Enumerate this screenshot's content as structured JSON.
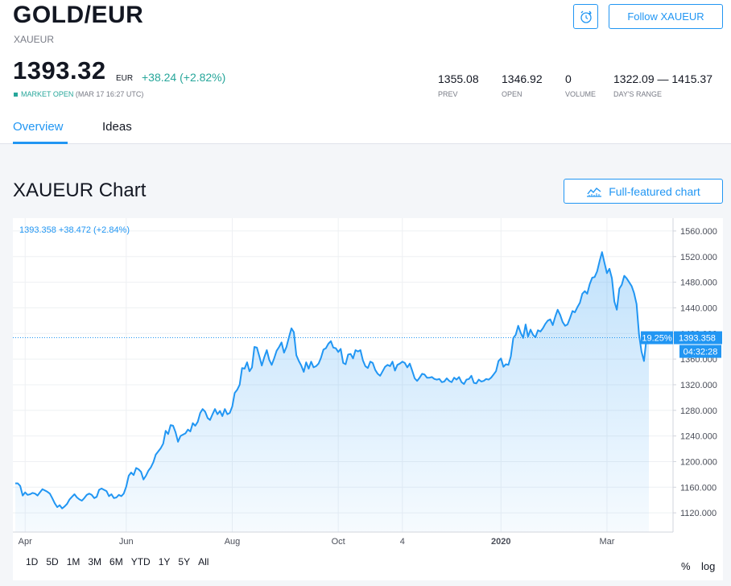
{
  "header": {
    "title": "GOLD/EUR",
    "subtitle": "XAUEUR",
    "follow_label": "Follow XAUEUR",
    "alarm_icon": "alarm-clock-icon"
  },
  "quote": {
    "price": "1393.32",
    "currency": "EUR",
    "change": "+38.24 (+2.82%)",
    "market_status": "MARKET OPEN",
    "market_time": "(MAR 17 16:27 UTC)",
    "up_color": "#26a69a"
  },
  "stats": [
    {
      "value": "1355.08",
      "label": "PREV"
    },
    {
      "value": "1346.92",
      "label": "OPEN"
    },
    {
      "value": "0",
      "label": "VOLUME"
    },
    {
      "value": "1322.09 — 1415.37",
      "label": "DAY'S RANGE"
    }
  ],
  "tabs": [
    {
      "label": "Overview",
      "active": true
    },
    {
      "label": "Ideas",
      "active": false
    }
  ],
  "section": {
    "title": "XAUEUR Chart",
    "full_chart_label": "Full-featured chart"
  },
  "chart_legend": "1393.358 +38.472 (+2.84%)",
  "ranges": [
    "1D",
    "5D",
    "1M",
    "3M",
    "6M",
    "YTD",
    "1Y",
    "5Y",
    "All"
  ],
  "scale_options": [
    "%",
    "log"
  ],
  "accent_color": "#2196f3",
  "chart_data": {
    "type": "area",
    "title": "",
    "xlabel": "",
    "ylabel": "",
    "ylim": [
      1090,
      1580
    ],
    "y_ticks": [
      "1560.000",
      "1520.000",
      "1480.000",
      "1440.000",
      "1400.000",
      "1360.000",
      "1320.000",
      "1280.000",
      "1240.000",
      "1200.000",
      "1160.000",
      "1120.000"
    ],
    "x_ticks": [
      {
        "label": "Apr",
        "idx": 4
      },
      {
        "label": "Jun",
        "idx": 45
      },
      {
        "label": "Aug",
        "idx": 88
      },
      {
        "label": "Oct",
        "idx": 131
      },
      {
        "label": "4",
        "idx": 157
      },
      {
        "label": "2020",
        "idx": 197
      },
      {
        "label": "Mar",
        "idx": 240
      }
    ],
    "last_value_label": "1393.358",
    "last_value": 1393.358,
    "percent_label": "19.25%",
    "countdown_label": "04:32:28",
    "series": [
      {
        "values": [
          1166,
          1166,
          1162,
          1147,
          1152,
          1148,
          1149,
          1151,
          1150,
          1147,
          1152,
          1157,
          1155,
          1153,
          1150,
          1143,
          1135,
          1129,
          1132,
          1127,
          1130,
          1134,
          1141,
          1145,
          1149,
          1144,
          1141,
          1139,
          1143,
          1148,
          1150,
          1148,
          1143,
          1145,
          1156,
          1158,
          1156,
          1154,
          1146,
          1149,
          1143,
          1144,
          1148,
          1146,
          1150,
          1161,
          1178,
          1183,
          1179,
          1190,
          1188,
          1184,
          1172,
          1178,
          1186,
          1191,
          1199,
          1211,
          1216,
          1221,
          1228,
          1248,
          1243,
          1257,
          1256,
          1246,
          1231,
          1240,
          1242,
          1244,
          1250,
          1247,
          1260,
          1256,
          1262,
          1276,
          1282,
          1278,
          1268,
          1265,
          1274,
          1282,
          1274,
          1279,
          1271,
          1282,
          1274,
          1276,
          1286,
          1307,
          1312,
          1320,
          1346,
          1345,
          1355,
          1341,
          1347,
          1379,
          1378,
          1364,
          1350,
          1363,
          1374,
          1359,
          1351,
          1361,
          1373,
          1379,
          1386,
          1370,
          1379,
          1394,
          1408,
          1402,
          1366,
          1357,
          1350,
          1340,
          1355,
          1345,
          1356,
          1347,
          1349,
          1353,
          1362,
          1375,
          1377,
          1384,
          1388,
          1378,
          1377,
          1371,
          1376,
          1354,
          1352,
          1367,
          1368,
          1361,
          1374,
          1372,
          1374,
          1358,
          1349,
          1346,
          1356,
          1354,
          1343,
          1337,
          1334,
          1341,
          1348,
          1351,
          1349,
          1356,
          1342,
          1351,
          1353,
          1356,
          1354,
          1347,
          1353,
          1342,
          1330,
          1326,
          1331,
          1337,
          1336,
          1331,
          1331,
          1332,
          1329,
          1328,
          1329,
          1324,
          1325,
          1330,
          1326,
          1324,
          1331,
          1328,
          1332,
          1324,
          1321,
          1328,
          1329,
          1334,
          1323,
          1322,
          1328,
          1325,
          1326,
          1329,
          1328,
          1331,
          1336,
          1341,
          1357,
          1361,
          1348,
          1352,
          1351,
          1364,
          1393,
          1398,
          1412,
          1401,
          1393,
          1414,
          1395,
          1406,
          1398,
          1394,
          1405,
          1403,
          1408,
          1415,
          1420,
          1422,
          1413,
          1426,
          1437,
          1429,
          1418,
          1412,
          1414,
          1424,
          1435,
          1433,
          1441,
          1448,
          1462,
          1466,
          1462,
          1477,
          1487,
          1488,
          1497,
          1513,
          1527,
          1510,
          1494,
          1501,
          1486,
          1450,
          1437,
          1470,
          1476,
          1490,
          1486,
          1480,
          1474,
          1463,
          1446,
          1398,
          1372,
          1357,
          1391,
          1393.358
        ]
      }
    ]
  }
}
